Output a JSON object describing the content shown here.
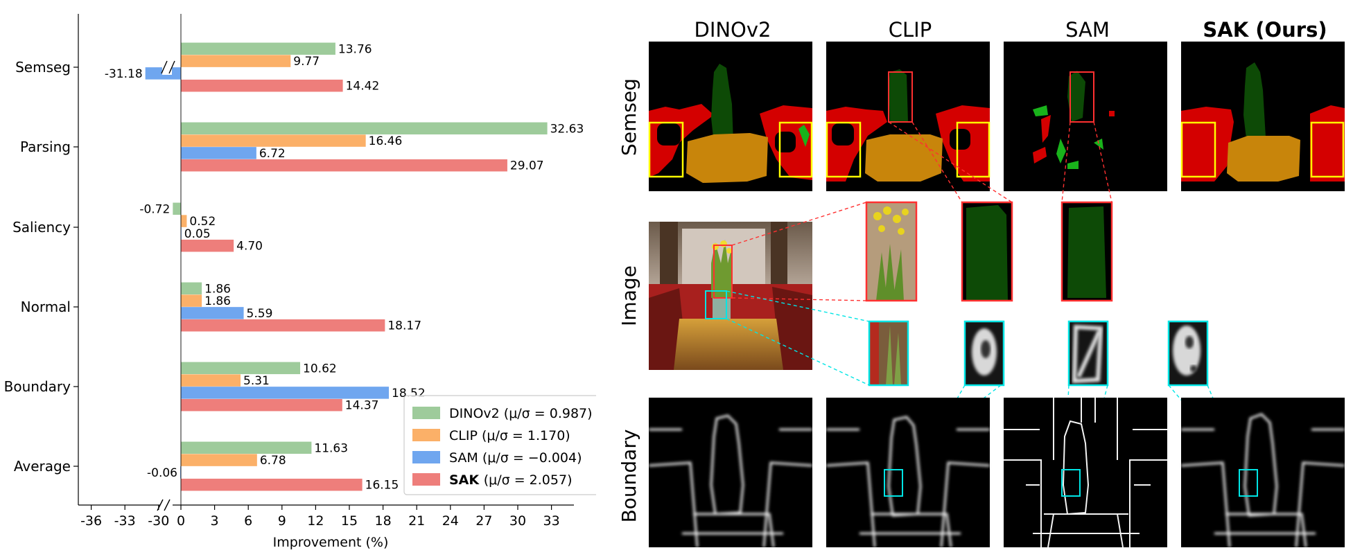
{
  "chart_data": {
    "type": "bar",
    "orientation": "horizontal",
    "categories": [
      "Semseg",
      "Parsing",
      "Saliency",
      "Normal",
      "Boundary",
      "Average"
    ],
    "series": [
      {
        "name": "DINOv2",
        "stat": "(μ/σ = 0.987)",
        "color": "#9ecb9b",
        "values": [
          13.76,
          32.63,
          -0.72,
          1.86,
          10.62,
          11.63
        ],
        "labels": [
          "13.76",
          "32.63",
          "-0.72",
          "1.86",
          "10.62",
          "11.63"
        ]
      },
      {
        "name": "CLIP",
        "stat": "(μ/σ = 1.170)",
        "color": "#fbb068",
        "values": [
          9.77,
          16.46,
          0.52,
          1.86,
          5.31,
          6.78
        ],
        "labels": [
          "9.77",
          "16.46",
          "0.52",
          "1.86",
          "5.31",
          "6.78"
        ]
      },
      {
        "name": "SAM",
        "stat": "(μ/σ = −0.004)",
        "color": "#6fa6ef",
        "values": [
          -31.18,
          6.72,
          0.05,
          5.59,
          18.52,
          -0.06
        ],
        "labels": [
          "-31.18",
          "6.72",
          "0.05",
          "5.59",
          "18.52",
          "-0.06"
        ]
      },
      {
        "name": "SAK",
        "stat": "(μ/σ = 2.057)",
        "color": "#ee7e7b",
        "bold": true,
        "values": [
          14.42,
          29.07,
          4.7,
          18.17,
          14.37,
          16.15
        ],
        "labels": [
          "14.42",
          "29.07",
          "4.70",
          "18.17",
          "14.37",
          "16.15"
        ]
      }
    ],
    "xlabel": "Improvement (%)",
    "xlim": [
      -37,
      35
    ],
    "axis_break": [
      -29,
      -1
    ],
    "xticks": [
      -36,
      -33,
      -30,
      0,
      3,
      6,
      9,
      12,
      15,
      18,
      21,
      24,
      27,
      30,
      33
    ],
    "legend_position": "lower-right",
    "grid": false
  },
  "panel": {
    "columns": [
      "DINOv2",
      "CLIP",
      "SAM",
      "SAK (Ours)"
    ],
    "rows": [
      "Semseg",
      "Image",
      "Boundary"
    ]
  }
}
